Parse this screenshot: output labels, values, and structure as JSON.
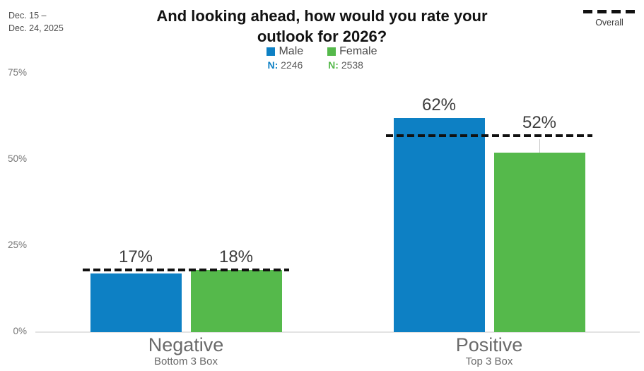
{
  "header": {
    "date_range_lines": [
      "Dec. 15 –",
      "Dec. 24, 2025"
    ],
    "title_lines": [
      "And looking ahead, how would you rate your",
      "outlook for 2026?"
    ]
  },
  "legend": {
    "overall_label": "Overall",
    "n_prefix": "N:",
    "items": [
      {
        "label": "Male",
        "n": "2246",
        "color": "#0d80c4"
      },
      {
        "label": "Female",
        "n": "2538",
        "color": "#55b94b"
      }
    ]
  },
  "chart_data": {
    "type": "bar",
    "title": "And looking ahead, how would you rate your outlook for 2026?",
    "categories": [
      {
        "label": "Negative",
        "sublabel": "Bottom 3 Box"
      },
      {
        "label": "Positive",
        "sublabel": "Top 3 Box"
      }
    ],
    "series": [
      {
        "name": "Male",
        "n": 2246,
        "color": "#0d80c4",
        "values": [
          17,
          62
        ]
      },
      {
        "name": "Female",
        "n": 2538,
        "color": "#55b94b",
        "values": [
          18,
          52
        ]
      }
    ],
    "overall": {
      "name": "Overall",
      "style": "dashed",
      "color": "#111111",
      "values": [
        18,
        57
      ],
      "labeled": false
    },
    "value_suffix": "%",
    "ylim": [
      0,
      75
    ],
    "yticks": [
      0,
      25,
      50,
      75
    ],
    "ytick_suffix": "%",
    "grid": false,
    "legend_position": "top-center",
    "axis_color": "#e3e3e3",
    "value_label_color": "#3d3d3d",
    "category_label_color": "#6a6a6a",
    "tick_label_color": "#757575"
  }
}
